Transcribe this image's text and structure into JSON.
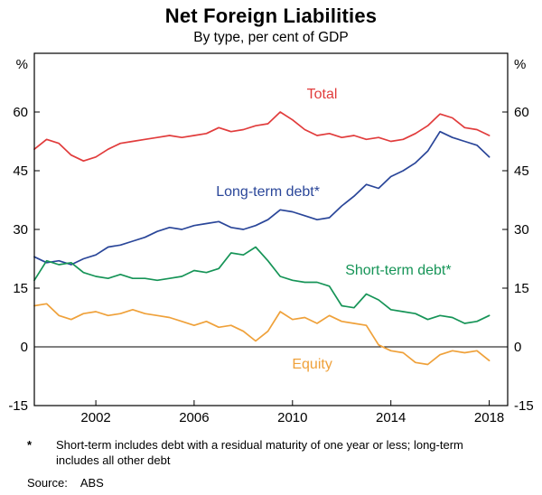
{
  "chart_data": {
    "type": "line",
    "title": "Net Foreign Liabilities",
    "subtitle": "By type, per cent of GDP",
    "y_unit": "%",
    "xlabel": "",
    "ylabel": "per cent of GDP",
    "xlim": [
      1999.5,
      2018.75
    ],
    "ylim": [
      -15,
      75
    ],
    "yticks": [
      60,
      45,
      30,
      15,
      0,
      -15
    ],
    "xticks": [
      2002,
      2006,
      2010,
      2014,
      2018
    ],
    "grid": false,
    "zero_line": true,
    "legend": "inline-annotations",
    "x": [
      1999.5,
      2000,
      2000.5,
      2001,
      2001.5,
      2002,
      2002.5,
      2003,
      2003.5,
      2004,
      2004.5,
      2005,
      2005.5,
      2006,
      2006.5,
      2007,
      2007.5,
      2008,
      2008.5,
      2009,
      2009.5,
      2010,
      2010.5,
      2011,
      2011.5,
      2012,
      2012.5,
      2013,
      2013.5,
      2014,
      2014.5,
      2015,
      2015.5,
      2016,
      2016.5,
      2017,
      2017.5,
      2018
    ],
    "series": [
      {
        "id": "total",
        "name": "Total",
        "color": "#e13c3c",
        "values": [
          50.5,
          53,
          52,
          49,
          47.5,
          48.5,
          50.5,
          52,
          52.5,
          53,
          53.5,
          54,
          53.5,
          54,
          54.5,
          56,
          55,
          55.5,
          56.5,
          57,
          60,
          58,
          55.5,
          54,
          54.5,
          53.5,
          54,
          53,
          53.5,
          52.5,
          53,
          54.5,
          56.5,
          59.5,
          58.5,
          56,
          55.5,
          54
        ]
      },
      {
        "id": "long-term-debt",
        "name": "Long-term debt*",
        "color": "#2a4699",
        "values": [
          23,
          21.5,
          22,
          21,
          22.5,
          23.5,
          25.5,
          26,
          27,
          28,
          29.5,
          30.5,
          30,
          31,
          31.5,
          32,
          30.5,
          30,
          31,
          32.5,
          35,
          34.5,
          33.5,
          32.5,
          33,
          36,
          38.5,
          41.5,
          40.5,
          43.5,
          45,
          47,
          50,
          55,
          53.5,
          52.5,
          51.5,
          48.5
        ]
      },
      {
        "id": "short-term-debt",
        "name": "Short-term debt*",
        "color": "#169457",
        "values": [
          17,
          22,
          21,
          21.5,
          19,
          18,
          17.5,
          18.5,
          17.5,
          17.5,
          17,
          17.5,
          18,
          19.5,
          19,
          20,
          24,
          23.5,
          25.5,
          22,
          18,
          17,
          16.5,
          16.5,
          15.5,
          10.5,
          10,
          13.5,
          12,
          9.5,
          9,
          8.5,
          7,
          8,
          7.5,
          6,
          6.5,
          8
        ]
      },
      {
        "id": "equity",
        "name": "Equity",
        "color": "#efa13a",
        "values": [
          10.5,
          11,
          8,
          7,
          8.5,
          9,
          8,
          8.5,
          9.5,
          8.5,
          8,
          7.5,
          6.5,
          5.5,
          6.5,
          5,
          5.5,
          4,
          1.5,
          4,
          9,
          7,
          7.5,
          6,
          8,
          6.5,
          6,
          5.5,
          0.5,
          -1,
          -1.5,
          -4,
          -4.5,
          -2,
          -1,
          -1.5,
          -1,
          -3.5
        ]
      }
    ],
    "annotations": [
      {
        "id": "total",
        "text": "Total",
        "x": 2011.2,
        "y": 63.5,
        "color": "#e13c3c"
      },
      {
        "id": "long-term-debt",
        "text": "Long-term debt*",
        "x": 2009.0,
        "y": 38.5,
        "color": "#2a4699"
      },
      {
        "id": "short-term-debt",
        "text": "Short-term debt*",
        "x": 2014.3,
        "y": 18.5,
        "color": "#169457"
      },
      {
        "id": "equity",
        "text": "Equity",
        "x": 2010.8,
        "y": -5.5,
        "color": "#efa13a"
      }
    ]
  },
  "footnote": {
    "marker": "*",
    "text": "Short-term includes debt with a residual maturity of one year or less; long-term includes all other debt"
  },
  "source": {
    "label": "Source:",
    "value": "ABS"
  }
}
